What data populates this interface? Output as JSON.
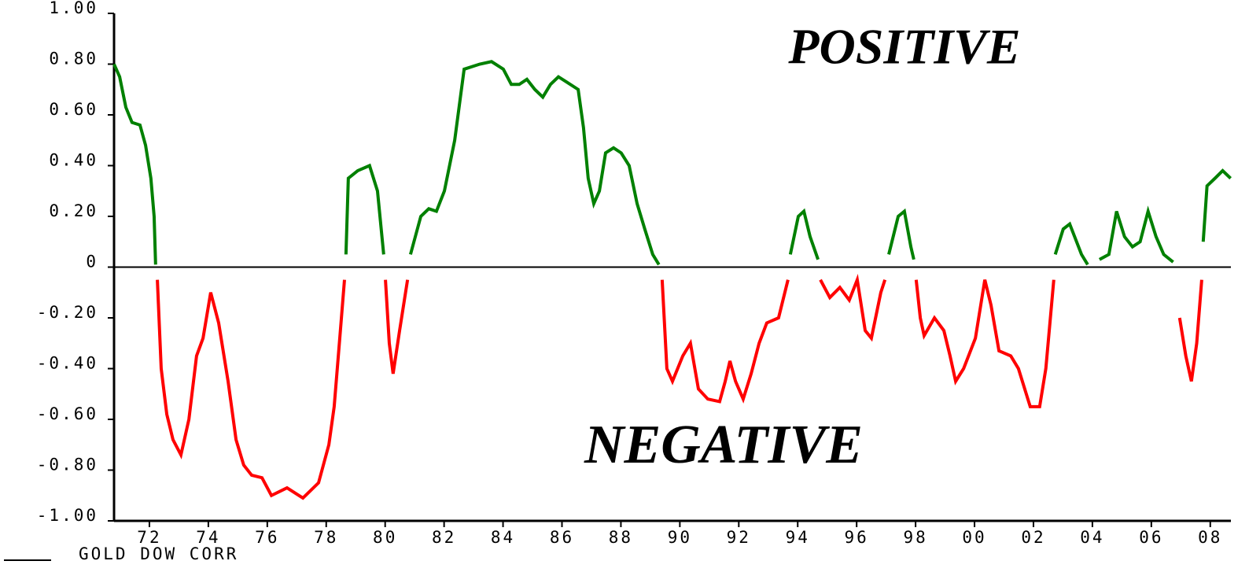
{
  "chart_data": {
    "type": "line",
    "annotations": [
      "POSITIVE",
      "NEGATIVE"
    ],
    "positive_color": "#008000",
    "negative_color": "#ff0000",
    "zero_line": true,
    "xlim": [
      1970.8,
      2008.7
    ],
    "xticks": [
      {
        "value": 1972,
        "label": "72"
      },
      {
        "value": 1974,
        "label": "74"
      },
      {
        "value": 1976,
        "label": "76"
      },
      {
        "value": 1978,
        "label": "78"
      },
      {
        "value": 1980,
        "label": "80"
      },
      {
        "value": 1982,
        "label": "82"
      },
      {
        "value": 1984,
        "label": "84"
      },
      {
        "value": 1986,
        "label": "86"
      },
      {
        "value": 1988,
        "label": "88"
      },
      {
        "value": 1990,
        "label": "90"
      },
      {
        "value": 1992,
        "label": "92"
      },
      {
        "value": 1994,
        "label": "94"
      },
      {
        "value": 1996,
        "label": "96"
      },
      {
        "value": 1998,
        "label": "98"
      },
      {
        "value": 2000,
        "label": "00"
      },
      {
        "value": 2002,
        "label": "02"
      },
      {
        "value": 2004,
        "label": "04"
      },
      {
        "value": 2006,
        "label": "06"
      },
      {
        "value": 2008,
        "label": "08"
      }
    ],
    "ylim": [
      -1,
      1
    ],
    "yticks": [
      {
        "value": 1,
        "label": "1.00"
      },
      {
        "value": 0.8,
        "label": "0.80"
      },
      {
        "value": 0.6,
        "label": "0.60"
      },
      {
        "value": 0.4,
        "label": "0.40"
      },
      {
        "value": 0.2,
        "label": "0.20"
      },
      0,
      {
        "value": -0.2,
        "label": "-0.20"
      },
      {
        "value": -0.4,
        "label": "-0.40"
      },
      {
        "value": -0.6,
        "label": "-0.60"
      },
      {
        "value": -0.8,
        "label": "-0.80"
      },
      {
        "value": -1,
        "label": "-1.00"
      }
    ],
    "series": [
      {
        "name": "GOLD DOW CORR",
        "x": [
          1970.8,
          1970.99,
          1971.2,
          1971.41,
          1971.68,
          1971.87,
          1972.05,
          1972.16,
          1972.21,
          1972.27,
          1972.4,
          1972.59,
          1972.8,
          1973.07,
          1973.34,
          1973.6,
          1973.82,
          1974.08,
          1974.35,
          1974.67,
          1974.94,
          1975.2,
          1975.47,
          1975.82,
          1976.14,
          1976.67,
          1977.21,
          1977.74,
          1978.09,
          1978.27,
          1978.46,
          1978.62,
          1978.67,
          1978.75,
          1979.07,
          1979.47,
          1979.74,
          1979.95,
          1980.01,
          1980.14,
          1980.27,
          1980.49,
          1980.76,
          1980.86,
          1981.21,
          1981.48,
          1981.74,
          1982.01,
          1982.36,
          1982.68,
          1983.21,
          1983.61,
          1984.01,
          1984.28,
          1984.55,
          1984.81,
          1985.08,
          1985.35,
          1985.61,
          1985.88,
          1986.15,
          1986.55,
          1986.73,
          1986.89,
          1987.08,
          1987.27,
          1987.48,
          1987.75,
          1988.01,
          1988.28,
          1988.55,
          1988.81,
          1989.08,
          1989.29,
          1989.4,
          1989.56,
          1989.75,
          1990.1,
          1990.36,
          1990.63,
          1990.95,
          1991.35,
          1991.54,
          1991.7,
          1991.89,
          1992.15,
          1992.42,
          1992.69,
          1992.95,
          1993.35,
          1993.67,
          1993.75,
          1994.02,
          1994.21,
          1994.42,
          1994.69,
          1994.77,
          1995.09,
          1995.43,
          1995.75,
          1996.02,
          1996.29,
          1996.5,
          1996.82,
          1996.96,
          1997.09,
          1997.41,
          1997.62,
          1997.84,
          1997.94,
          1998.02,
          1998.16,
          1998.29,
          1998.64,
          1998.96,
          1999.17,
          1999.36,
          1999.63,
          2000.03,
          2000.35,
          2000.56,
          2000.83,
          2001.23,
          2001.49,
          2001.89,
          2002.21,
          2002.42,
          2002.69,
          2002.74,
          2003.01,
          2003.23,
          2003.63,
          2003.84,
          2004.02,
          2004.24,
          2004.56,
          2004.82,
          2005.09,
          2005.36,
          2005.62,
          2005.89,
          2006.16,
          2006.42,
          2006.74,
          2006.96,
          2007.17,
          2007.36,
          2007.54,
          2007.71,
          2007.76,
          2007.89,
          2008.16,
          2008.42,
          2008.69
        ],
        "values": [
          0.8,
          0.75,
          0.63,
          0.57,
          0.56,
          0.48,
          0.35,
          0.2,
          0.01,
          -0.05,
          -0.4,
          -0.58,
          -0.68,
          -0.74,
          -0.6,
          -0.35,
          -0.28,
          -0.1,
          -0.22,
          -0.45,
          -0.68,
          -0.78,
          -0.82,
          -0.83,
          -0.9,
          -0.87,
          -0.91,
          -0.85,
          -0.7,
          -0.55,
          -0.28,
          -0.05,
          0.05,
          0.35,
          0.38,
          0.4,
          0.3,
          0.05,
          -0.05,
          -0.3,
          -0.42,
          -0.25,
          -0.05,
          0.05,
          0.2,
          0.23,
          0.22,
          0.3,
          0.5,
          0.78,
          0.8,
          0.81,
          0.78,
          0.72,
          0.72,
          0.74,
          0.7,
          0.67,
          0.72,
          0.75,
          0.73,
          0.7,
          0.55,
          0.35,
          0.25,
          0.3,
          0.45,
          0.47,
          0.45,
          0.4,
          0.25,
          0.15,
          0.05,
          0.01,
          -0.05,
          -0.4,
          -0.45,
          -0.35,
          -0.3,
          -0.48,
          -0.52,
          -0.53,
          -0.45,
          -0.37,
          -0.45,
          -0.52,
          -0.42,
          -0.3,
          -0.22,
          -0.2,
          -0.05,
          0.05,
          0.2,
          0.22,
          0.12,
          0.03,
          -0.05,
          -0.12,
          -0.08,
          -0.13,
          -0.05,
          -0.25,
          -0.28,
          -0.1,
          -0.05,
          0.05,
          0.2,
          0.22,
          0.08,
          0.03,
          -0.05,
          -0.2,
          -0.27,
          -0.2,
          -0.25,
          -0.35,
          -0.45,
          -0.4,
          -0.28,
          -0.05,
          -0.15,
          -0.33,
          -0.35,
          -0.4,
          -0.55,
          -0.55,
          -0.4,
          -0.05,
          0.05,
          0.15,
          0.17,
          0.05,
          0.01,
          -0.01,
          0.03,
          0.05,
          0.22,
          0.12,
          0.08,
          0.1,
          0.22,
          0.12,
          0.05,
          0.02,
          -0.2,
          -0.35,
          -0.45,
          -0.3,
          -0.05,
          0.1,
          0.32,
          0.35,
          0.38,
          0.35
        ]
      }
    ]
  }
}
